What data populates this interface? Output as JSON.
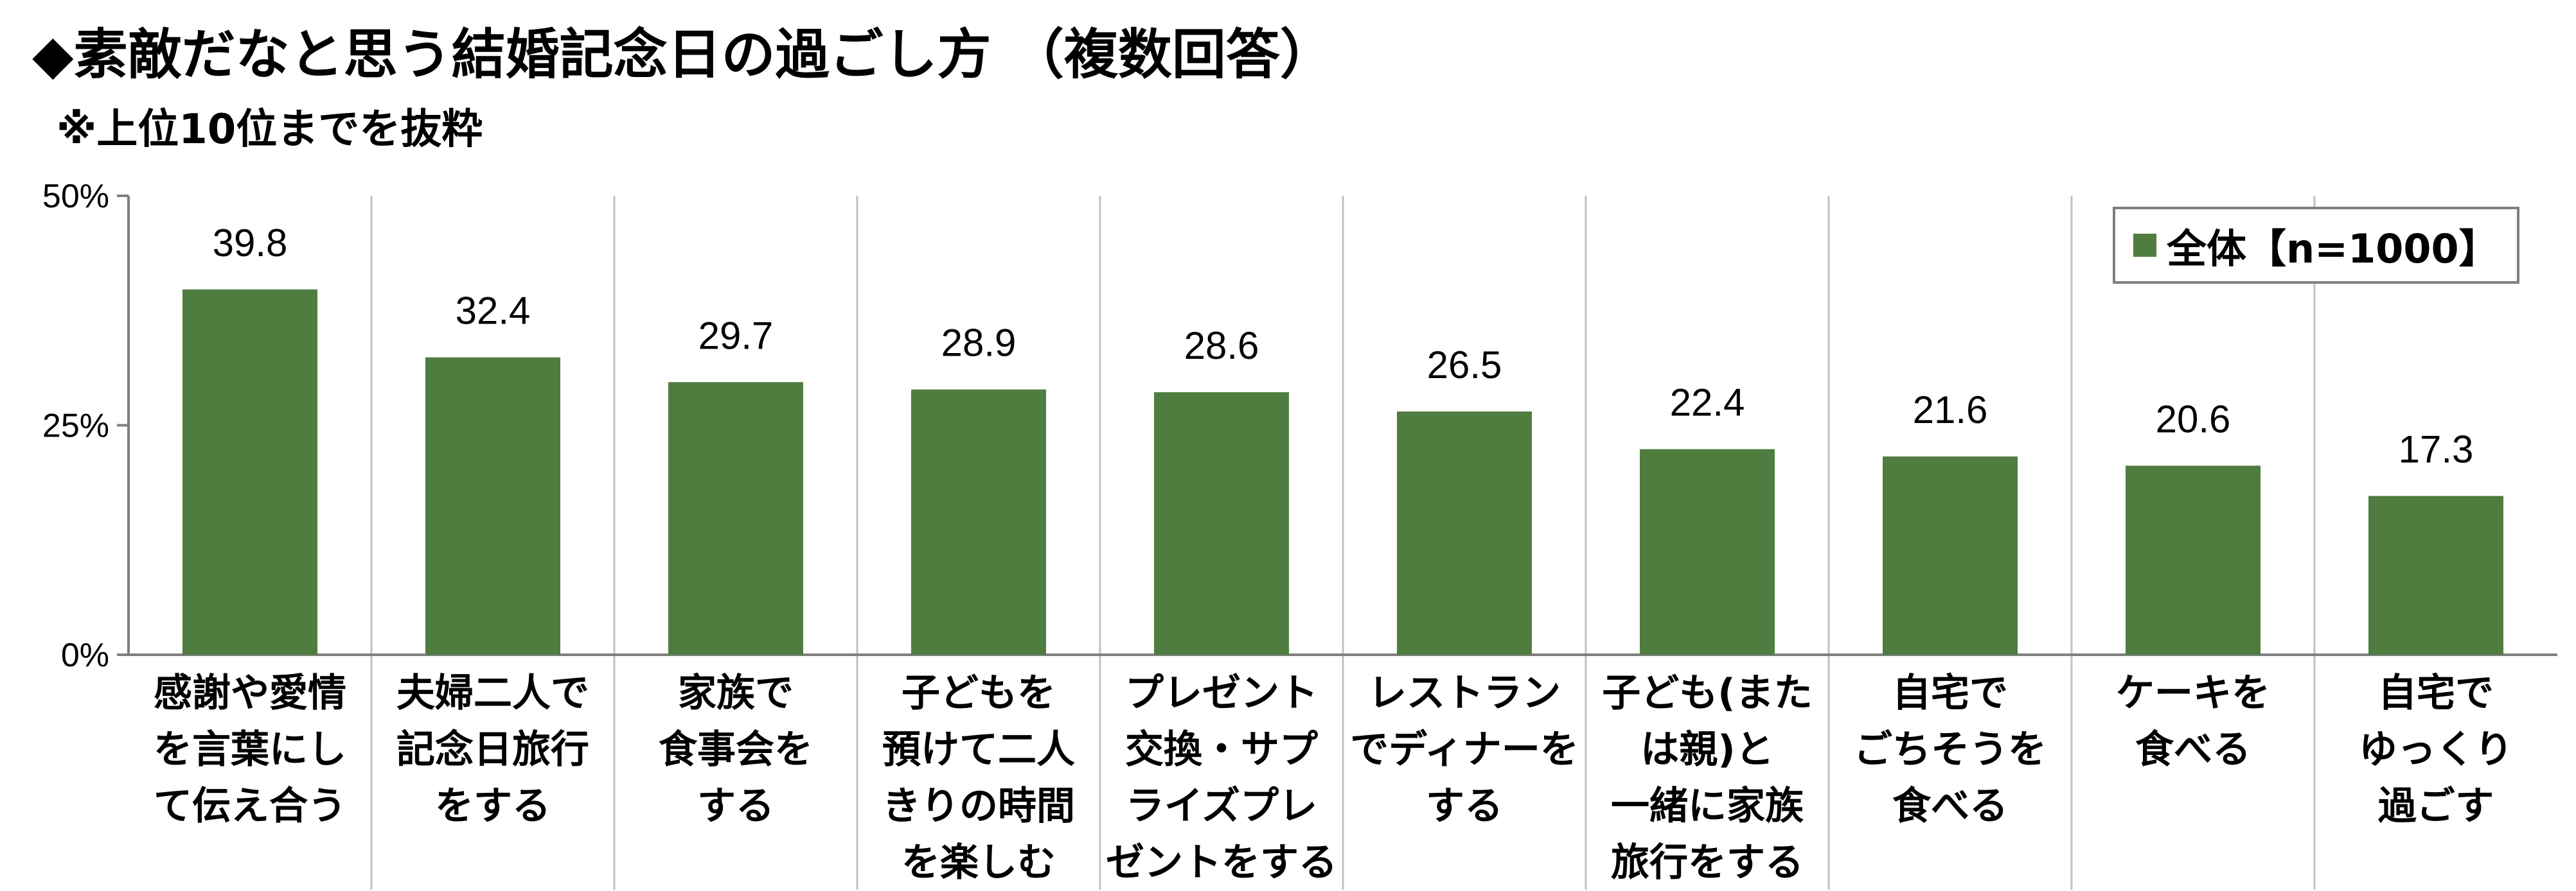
{
  "title": "◆素敵だなと思う結婚記念日の過ごし方 （複数回答）",
  "subtitle": "※上位10位までを抜粋",
  "legend": {
    "label": "全体【n=1000】",
    "color": "#4f7d3f"
  },
  "chart_data": {
    "type": "bar",
    "title": "◆素敵だなと思う結婚記念日の過ごし方 （複数回答）",
    "subtitle": "※上位10位までを抜粋",
    "categories": [
      "感謝や愛情\nを言葉にし\nて伝え合う",
      "夫婦二人で\n記念日旅行\nをする",
      "家族で\n食事会を\nする",
      "子どもを\n預けて二人\nきりの時間\nを楽しむ",
      "プレゼント\n交換・サプ\nライズプレ\nゼントをする",
      "レストラン\nでディナーを\nする",
      "子ども(また\nは親)と\n一緒に家族\n旅行をする",
      "自宅で\nごちそうを\n食べる",
      "ケーキを\n食べる",
      "自宅で\nゆっくり\n過ごす"
    ],
    "series": [
      {
        "name": "全体【n=1000】",
        "values": [
          39.8,
          32.4,
          29.7,
          28.9,
          28.6,
          26.5,
          22.4,
          21.6,
          20.6,
          17.3
        ]
      }
    ],
    "data_labels": [
      "39.8",
      "32.4",
      "29.7",
      "28.9",
      "28.6",
      "26.5",
      "22.4",
      "21.6",
      "20.6",
      "17.3"
    ],
    "yticks": [
      "0%",
      "25%",
      "50%"
    ],
    "ylim": [
      0,
      50
    ],
    "grid": "vertical separators",
    "legend_position": "top-right",
    "bar_color": "#4f7d3f"
  }
}
